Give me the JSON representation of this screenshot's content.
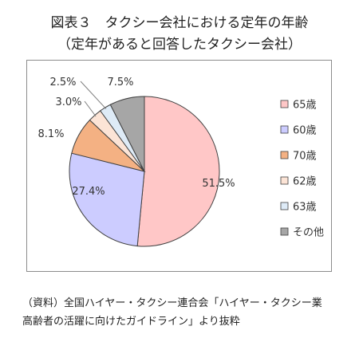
{
  "title": {
    "line1": "図表３　タクシー会社における定年の年齢",
    "line2": "（定年があると回答したタクシー会社）"
  },
  "chart_data": {
    "type": "pie",
    "slices": [
      {
        "label": "65歳",
        "value": 51.5,
        "display": "51.5%",
        "color": "#ffc7c7"
      },
      {
        "label": "60歳",
        "value": 27.4,
        "display": "27.4%",
        "color": "#ccccff"
      },
      {
        "label": "70歳",
        "value": 8.1,
        "display": "8.1%",
        "color": "#f4b183"
      },
      {
        "label": "62歳",
        "value": 3.0,
        "display": "3.0%",
        "color": "#fce4d6"
      },
      {
        "label": "63歳",
        "value": 2.5,
        "display": "2.5%",
        "color": "#deebf7"
      },
      {
        "label": "その他",
        "value": 7.5,
        "display": "7.5%",
        "color": "#a6a6a6"
      }
    ],
    "legend_position": "right"
  },
  "source": {
    "line1": "（資料）全国ハイヤー・タクシー連合会「ハイヤー・タクシー業",
    "line2": "高齢者の活躍に向けたガイドライン」より抜粋"
  }
}
